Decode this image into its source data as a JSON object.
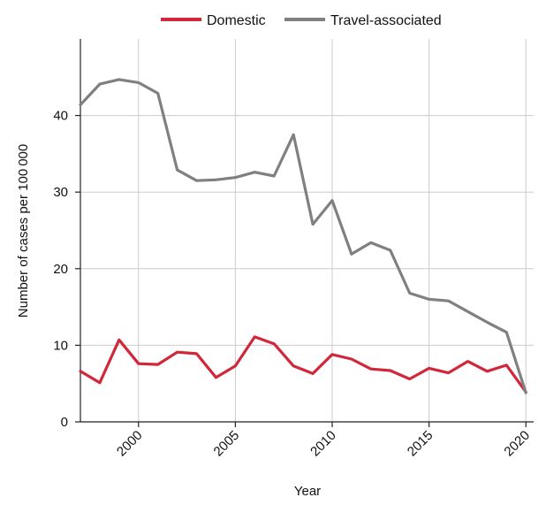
{
  "chart_data": {
    "type": "line",
    "xlabel": "Year",
    "ylabel": "Number of cases per 100 000",
    "xlim": [
      1997,
      2020
    ],
    "ylim": [
      0,
      50
    ],
    "x_ticks": [
      2000,
      2005,
      2010,
      2015,
      2020
    ],
    "y_ticks": [
      0,
      10,
      20,
      30,
      40
    ],
    "grid": "vertical and horizontal at ticks",
    "legend_position": "top-center",
    "x": [
      1997,
      1998,
      1999,
      2000,
      2001,
      2002,
      2003,
      2004,
      2005,
      2006,
      2007,
      2008,
      2009,
      2010,
      2011,
      2012,
      2013,
      2014,
      2015,
      2016,
      2017,
      2018,
      2019,
      2020
    ],
    "series": [
      {
        "name": "Domestic",
        "color": "#d0283a",
        "values": [
          6.6,
          5.1,
          10.7,
          7.6,
          7.5,
          9.1,
          8.9,
          5.8,
          7.3,
          11.1,
          10.2,
          7.3,
          6.3,
          8.8,
          8.2,
          6.9,
          6.7,
          5.6,
          7.0,
          6.4,
          7.9,
          6.6,
          7.4,
          3.9
        ]
      },
      {
        "name": "Travel-associated",
        "color": "#808080",
        "values": [
          41.4,
          44.1,
          44.7,
          44.3,
          42.9,
          32.9,
          31.5,
          31.6,
          31.9,
          32.6,
          32.1,
          37.5,
          25.8,
          28.9,
          21.9,
          23.4,
          22.4,
          16.8,
          16.0,
          15.8,
          14.4,
          13.0,
          11.7,
          3.8
        ]
      }
    ]
  }
}
